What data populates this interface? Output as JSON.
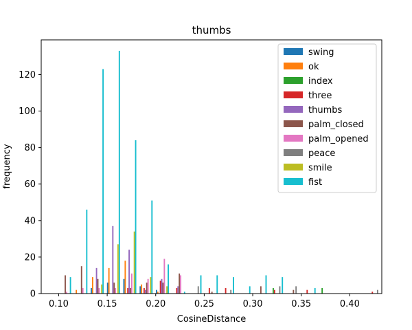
{
  "chart_data": {
    "type": "bar",
    "title": "thumbs",
    "xlabel": "CosineDistance",
    "ylabel": "frequency",
    "xlim": [
      0.082,
      0.433
    ],
    "ylim": [
      0,
      139
    ],
    "xticks": [
      "0.10",
      "0.15",
      "0.20",
      "0.25",
      "0.30",
      "0.35",
      "0.40"
    ],
    "xtick_values": [
      0.1,
      0.15,
      0.2,
      0.25,
      0.3,
      0.35,
      0.4
    ],
    "yticks": [
      "0",
      "20",
      "40",
      "60",
      "80",
      "100",
      "120"
    ],
    "ytick_values": [
      0,
      20,
      40,
      60,
      80,
      100,
      120
    ],
    "legend_position": "top-right",
    "grid": false,
    "bin_edges": [
      0.0977,
      0.1145,
      0.1313,
      0.1481,
      0.1649,
      0.1817,
      0.1985,
      0.2153,
      0.2321,
      0.2489,
      0.2657,
      0.2825,
      0.2993,
      0.3161,
      0.3329,
      0.3497,
      0.3665,
      0.3833,
      0.4001,
      0.4169,
      0.4337
    ],
    "series": [
      {
        "name": "swing",
        "color": "#1f77b4",
        "values": [
          0,
          0,
          3,
          6,
          8,
          4,
          2,
          0,
          0,
          0,
          0,
          0,
          0,
          0,
          0,
          0,
          0,
          0,
          0,
          0
        ]
      },
      {
        "name": "ok",
        "color": "#ff7f0e",
        "values": [
          0,
          2,
          9,
          14,
          18,
          5,
          1,
          0,
          0,
          0,
          0,
          0,
          0,
          0,
          0,
          0,
          0,
          0,
          0,
          0
        ]
      },
      {
        "name": "index",
        "color": "#2ca02c",
        "values": [
          0,
          0,
          0,
          0,
          0,
          0,
          0,
          0,
          0,
          0,
          0,
          0,
          0,
          3,
          0,
          0,
          3,
          0,
          0,
          0
        ]
      },
      {
        "name": "three",
        "color": "#d62728",
        "values": [
          0,
          0,
          0,
          0,
          3,
          3,
          7,
          3,
          0,
          3,
          3,
          0,
          0,
          2,
          0,
          2,
          0,
          0,
          0,
          1
        ]
      },
      {
        "name": "thumbs",
        "color": "#9467bd",
        "values": [
          0,
          0,
          14,
          37,
          24,
          2,
          8,
          4,
          0,
          0,
          0,
          0,
          0,
          0,
          0,
          0,
          0,
          0,
          0,
          0
        ]
      },
      {
        "name": "palm_closed",
        "color": "#8c564b",
        "values": [
          10,
          15,
          8,
          6,
          3,
          6,
          6,
          11,
          0,
          1,
          0,
          0,
          4,
          0,
          2,
          0,
          0,
          0,
          0,
          0
        ]
      },
      {
        "name": "palm_opened",
        "color": "#e377c2",
        "values": [
          1,
          3,
          3,
          3,
          11,
          8,
          19,
          10,
          0,
          0,
          0,
          0,
          0,
          0,
          0,
          0,
          0,
          0,
          0,
          0
        ]
      },
      {
        "name": "peace",
        "color": "#7f7f7f",
        "values": [
          0,
          0,
          0,
          0,
          0,
          0,
          0,
          0,
          4,
          0,
          2,
          0,
          0,
          4,
          4,
          0,
          0,
          0,
          0,
          2
        ]
      },
      {
        "name": "smile",
        "color": "#bcbd22",
        "values": [
          0,
          0,
          5,
          27,
          34,
          9,
          4,
          0,
          0,
          0,
          0,
          0,
          0,
          0,
          0,
          0,
          0,
          0,
          0,
          0
        ]
      },
      {
        "name": "fist",
        "color": "#17becf",
        "values": [
          9,
          46,
          123,
          133,
          84,
          51,
          16,
          1,
          10,
          10,
          9,
          4,
          10,
          9,
          0,
          3,
          0,
          0,
          0,
          0
        ]
      }
    ]
  }
}
